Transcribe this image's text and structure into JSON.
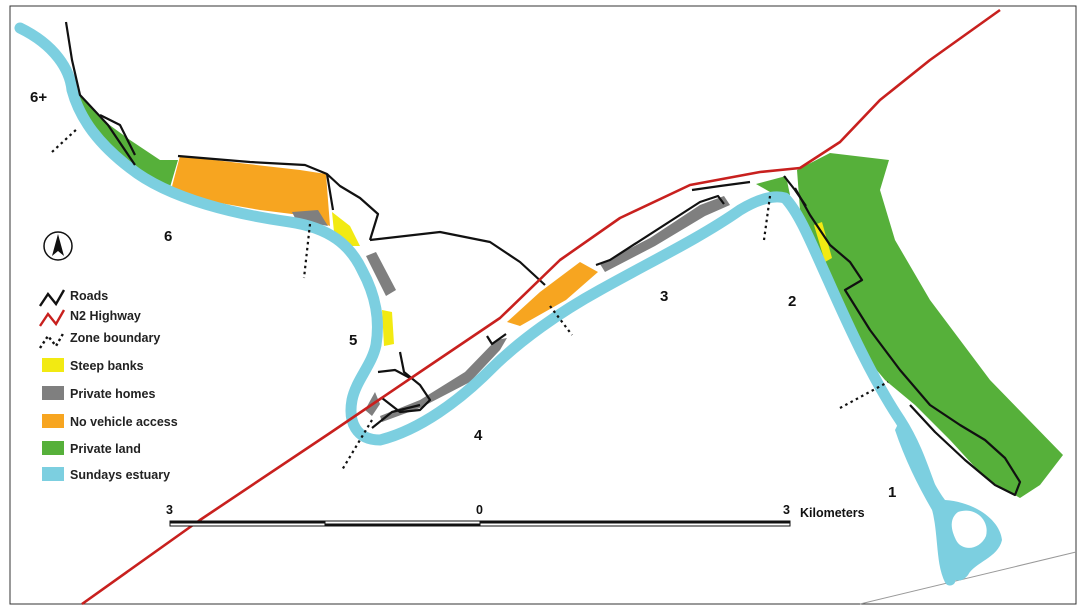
{
  "colors": {
    "estuary": "#7ccfe0",
    "private_land": "#56b03a",
    "no_vehicle_access": "#f7a520",
    "private_homes": "#7f7f7f",
    "steep_banks": "#f2ea12",
    "roads": "#111111",
    "highway": "#c8201e",
    "zone_boundary": "#111111"
  },
  "zones": [
    {
      "label": "1"
    },
    {
      "label": "2"
    },
    {
      "label": "3"
    },
    {
      "label": "4"
    },
    {
      "label": "5"
    },
    {
      "label": "6"
    },
    {
      "label": "6+"
    }
  ],
  "legend": {
    "items": [
      {
        "label": "Roads",
        "kind": "line",
        "color": "#111111"
      },
      {
        "label": "N2 Highway",
        "kind": "line",
        "color": "#c8201e"
      },
      {
        "label": "Zone boundary",
        "kind": "dotted",
        "color": "#111111"
      },
      {
        "label": "Steep banks",
        "kind": "box",
        "color": "#f2ea12"
      },
      {
        "label": "Private homes",
        "kind": "box",
        "color": "#7f7f7f"
      },
      {
        "label": "No vehicle access",
        "kind": "box",
        "color": "#f7a520"
      },
      {
        "label": "Private land",
        "kind": "box",
        "color": "#56b03a"
      },
      {
        "label": "Sundays estuary",
        "kind": "box",
        "color": "#7ccfe0"
      }
    ]
  },
  "scale_bar": {
    "left_label": "3",
    "mid_label": "0",
    "right_label": "3",
    "unit": "Kilometers"
  },
  "north_arrow_icon": "north-arrow-icon"
}
